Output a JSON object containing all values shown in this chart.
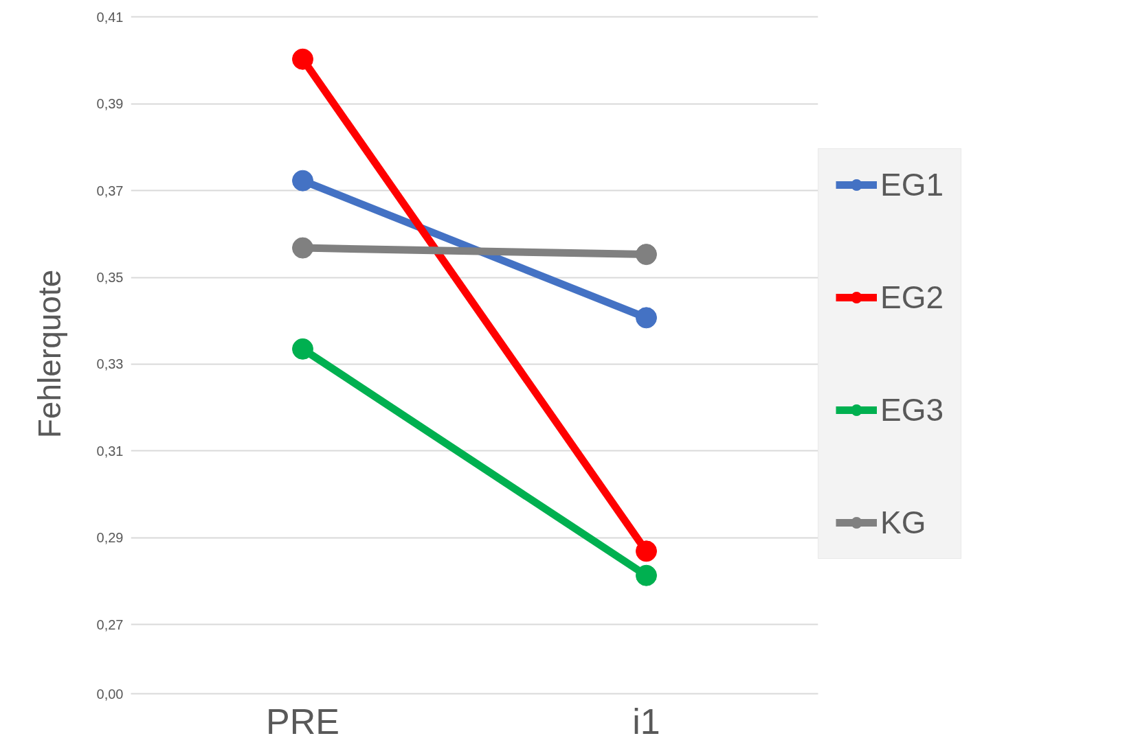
{
  "chart_data": {
    "type": "line",
    "ylabel": "Fehlerquote",
    "categories": [
      "PRE",
      "i1"
    ],
    "series": [
      {
        "name": "EG1",
        "color": "#4472c4",
        "values": [
          0.3723,
          0.3407
        ]
      },
      {
        "name": "EG2",
        "color": "#ff0000",
        "values": [
          0.4003,
          0.2869
        ]
      },
      {
        "name": "EG3",
        "color": "#00b050",
        "values": [
          0.3335,
          0.2813
        ]
      },
      {
        "name": "KG",
        "color": "#808080",
        "values": [
          0.3568,
          0.3553
        ]
      }
    ],
    "ylim": [
      0.27,
      0.41
    ],
    "yticks": [
      {
        "value": 0.27,
        "label": "0,27"
      },
      {
        "value": 0.29,
        "label": "0,29"
      },
      {
        "value": 0.31,
        "label": "0,31"
      },
      {
        "value": 0.33,
        "label": "0,33"
      },
      {
        "value": 0.35,
        "label": "0,35"
      },
      {
        "value": 0.37,
        "label": "0,37"
      },
      {
        "value": 0.39,
        "label": "0,39"
      },
      {
        "value": 0.41,
        "label": "0,41"
      }
    ],
    "annotations": [
      "0,00"
    ],
    "grid": "y",
    "legend": "right",
    "marker": "circle",
    "line_style": "solid"
  }
}
